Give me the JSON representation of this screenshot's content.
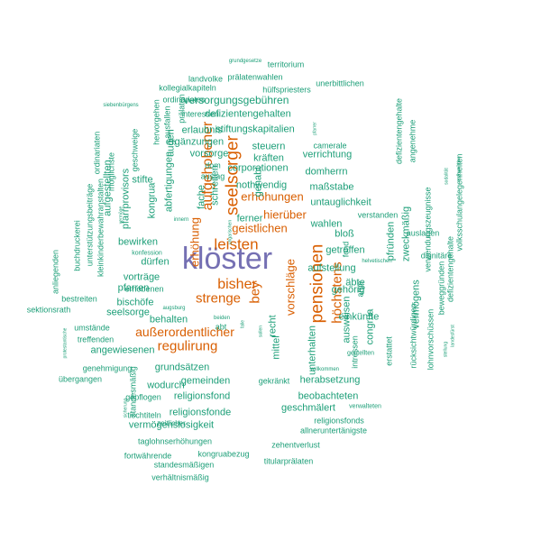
{
  "colors": {
    "level1": "#1b9e77",
    "level2": "#d95f02",
    "level3": "#7570b3"
  },
  "words": [
    {
      "t": "klöster",
      "c": "level3",
      "v": false
    },
    {
      "t": "pensionen",
      "c": "level2",
      "v": true
    },
    {
      "t": "leisten",
      "c": "level2",
      "v": false
    },
    {
      "t": "seelsorger",
      "c": "level2",
      "v": true
    },
    {
      "t": "aufgehobener",
      "c": "level2",
      "v": true
    },
    {
      "t": "bisher",
      "c": "level2",
      "v": false
    },
    {
      "t": "bey",
      "c": "level2",
      "v": true
    },
    {
      "t": "strenge",
      "c": "level2",
      "v": false
    },
    {
      "t": "höchstens",
      "c": "level2",
      "v": true
    },
    {
      "t": "außerordentlicher",
      "c": "level2",
      "v": false
    },
    {
      "t": "regulirung",
      "c": "level2",
      "v": false
    },
    {
      "t": "vorschläge",
      "c": "level2",
      "v": true
    },
    {
      "t": "erhöhung",
      "c": "level2",
      "v": true
    },
    {
      "t": "hierüber",
      "c": "level2",
      "v": false
    },
    {
      "t": "erhöhungen",
      "c": "level2",
      "v": false
    },
    {
      "t": "geistlichen",
      "c": "level2",
      "v": false
    },
    {
      "t": "versorgungsgebühren",
      "c": "level1",
      "v": false
    },
    {
      "t": "defizientengehalten",
      "c": "level1",
      "v": false
    },
    {
      "t": "stiftungskapitalien",
      "c": "level1",
      "v": false
    },
    {
      "t": "ergänzungen",
      "c": "level1",
      "v": false
    },
    {
      "t": "erlaubnis",
      "c": "level1",
      "v": false
    },
    {
      "t": "vorsorge",
      "c": "level1",
      "v": false
    },
    {
      "t": "steuern",
      "c": "level1",
      "v": false
    },
    {
      "t": "verrichtung",
      "c": "level1",
      "v": false
    },
    {
      "t": "kräften",
      "c": "level1",
      "v": false
    },
    {
      "t": "corporationen",
      "c": "level1",
      "v": false
    },
    {
      "t": "domherrn",
      "c": "level1",
      "v": false
    },
    {
      "t": "nothwendig",
      "c": "level1",
      "v": false
    },
    {
      "t": "maßstabe",
      "c": "level1",
      "v": false
    },
    {
      "t": "untauglichkeit",
      "c": "level1",
      "v": false
    },
    {
      "t": "ferner",
      "c": "level1",
      "v": false
    },
    {
      "t": "wahlen",
      "c": "level1",
      "v": false
    },
    {
      "t": "bloß",
      "c": "level1",
      "v": false
    },
    {
      "t": "getroffen",
      "c": "level1",
      "v": false
    },
    {
      "t": "aufstellung",
      "c": "level1",
      "v": false
    },
    {
      "t": "äbte",
      "c": "level1",
      "v": false
    },
    {
      "t": "gehörig",
      "c": "level1",
      "v": false
    },
    {
      "t": "einkünfte",
      "c": "level1",
      "v": false
    },
    {
      "t": "bewirken",
      "c": "level1",
      "v": false
    },
    {
      "t": "dürfen",
      "c": "level1",
      "v": false
    },
    {
      "t": "vorträge",
      "c": "level1",
      "v": false
    },
    {
      "t": "pfarren",
      "c": "level1",
      "v": false
    },
    {
      "t": "bischöfe",
      "c": "level1",
      "v": false
    },
    {
      "t": "seelsorge",
      "c": "level1",
      "v": false
    },
    {
      "t": "behalten",
      "c": "level1",
      "v": false
    },
    {
      "t": "angewiesenen",
      "c": "level1",
      "v": false
    },
    {
      "t": "grundsätzen",
      "c": "level1",
      "v": false
    },
    {
      "t": "herabsetzung",
      "c": "level1",
      "v": false
    },
    {
      "t": "wodurch",
      "c": "level1",
      "v": false
    },
    {
      "t": "gemeinden",
      "c": "level1",
      "v": false
    },
    {
      "t": "beobachteten",
      "c": "level1",
      "v": false
    },
    {
      "t": "religionsfond",
      "c": "level1",
      "v": false
    },
    {
      "t": "geschmälert",
      "c": "level1",
      "v": false
    },
    {
      "t": "religionsfonde",
      "c": "level1",
      "v": false
    },
    {
      "t": "vermögenslosigkeit",
      "c": "level1",
      "v": false
    },
    {
      "t": "taglohnserhöhungen",
      "c": "level1",
      "v": false
    },
    {
      "t": "kongruabezug",
      "c": "level1",
      "v": false
    },
    {
      "t": "zehentverlust",
      "c": "level1",
      "v": false
    },
    {
      "t": "fortwährende",
      "c": "level1",
      "v": false
    },
    {
      "t": "titularprälaten",
      "c": "level1",
      "v": false
    },
    {
      "t": "standesmäßigen",
      "c": "level1",
      "v": false
    },
    {
      "t": "verhältnismäßig",
      "c": "level1",
      "v": false
    },
    {
      "t": "allneruntertänigste",
      "c": "level1",
      "v": false
    },
    {
      "t": "religionsfonds",
      "c": "level1",
      "v": false
    },
    {
      "t": "stifte",
      "c": "level1",
      "v": false
    },
    {
      "t": "gehabt",
      "c": "level1",
      "v": true
    },
    {
      "t": "schreiten",
      "c": "level1",
      "v": true
    },
    {
      "t": "fache",
      "c": "level1",
      "v": true
    },
    {
      "t": "kongrua",
      "c": "level1",
      "v": true
    },
    {
      "t": "aufgestellten",
      "c": "level1",
      "v": true
    },
    {
      "t": "pfarrprovisors",
      "c": "level1",
      "v": true
    },
    {
      "t": "abfertigungen",
      "c": "level1",
      "v": true
    },
    {
      "t": "zweckmäßig",
      "c": "level1",
      "v": true
    },
    {
      "t": "pfründen",
      "c": "level1",
      "v": true
    },
    {
      "t": "vermögens",
      "c": "level1",
      "v": true
    },
    {
      "t": "congrua",
      "c": "level1",
      "v": true
    },
    {
      "t": "ausweisen",
      "c": "level1",
      "v": true
    },
    {
      "t": "unterhalten",
      "c": "level1",
      "v": true
    },
    {
      "t": "mittel",
      "c": "level1",
      "v": true
    },
    {
      "t": "recht",
      "c": "level1",
      "v": true
    },
    {
      "t": "augen",
      "c": "level1",
      "v": true
    },
    {
      "t": "territorium",
      "c": "level1",
      "v": false
    },
    {
      "t": "prälatenwahlen",
      "c": "level1",
      "v": false
    },
    {
      "t": "landvolke",
      "c": "level1",
      "v": false
    },
    {
      "t": "hülfspriesters",
      "c": "level1",
      "v": false
    },
    {
      "t": "kollegialkapiteln",
      "c": "level1",
      "v": false
    },
    {
      "t": "ordinariates",
      "c": "level1",
      "v": false
    },
    {
      "t": "unerbittlichen",
      "c": "level1",
      "v": false
    },
    {
      "t": "interessen",
      "c": "level1",
      "v": false
    },
    {
      "t": "camerale",
      "c": "level1",
      "v": false
    },
    {
      "t": "dom",
      "c": "level1",
      "v": false
    },
    {
      "t": "auslag",
      "c": "level1",
      "v": false
    },
    {
      "t": "verstanden",
      "c": "level1",
      "v": false
    },
    {
      "t": "auslagen",
      "c": "level1",
      "v": false
    },
    {
      "t": "dignitäre",
      "c": "level1",
      "v": false
    },
    {
      "t": "konfession",
      "c": "level1",
      "v": false
    },
    {
      "t": "erhobenen",
      "c": "level1",
      "v": false
    },
    {
      "t": "bestreiten",
      "c": "level1",
      "v": false
    },
    {
      "t": "sektionsrath",
      "c": "level1",
      "v": false
    },
    {
      "t": "umstände",
      "c": "level1",
      "v": false
    },
    {
      "t": "treffenden",
      "c": "level1",
      "v": false
    },
    {
      "t": "abt",
      "c": "level1",
      "v": false
    },
    {
      "t": "genehmigung",
      "c": "level1",
      "v": false
    },
    {
      "t": "übergangen",
      "c": "level1",
      "v": false
    },
    {
      "t": "gekränkt",
      "c": "level1",
      "v": false
    },
    {
      "t": "gepflogen",
      "c": "level1",
      "v": false
    },
    {
      "t": "tischtiteln",
      "c": "level1",
      "v": false
    },
    {
      "t": "zeitlicher",
      "c": "level1",
      "v": false
    },
    {
      "t": "verwalteten",
      "c": "level1",
      "v": false
    },
    {
      "t": "vollkommen",
      "c": "level1",
      "v": false
    },
    {
      "t": "gestellten",
      "c": "level1",
      "v": false
    },
    {
      "t": "lohnvorschüssen",
      "c": "level1",
      "v": true
    },
    {
      "t": "rücksichtwürdigen",
      "c": "level1",
      "v": true
    },
    {
      "t": "erstattet",
      "c": "level1",
      "v": true
    },
    {
      "t": "intressen",
      "c": "level1",
      "v": true
    },
    {
      "t": "arge",
      "c": "level1",
      "v": true
    },
    {
      "t": "fond",
      "c": "level1",
      "v": true
    },
    {
      "t": "beweggründen",
      "c": "level1",
      "v": true
    },
    {
      "t": "defizientengehalte",
      "c": "level1",
      "v": true
    },
    {
      "t": "volksschulangelegenheiten",
      "c": "level1",
      "v": true
    },
    {
      "t": "verwendungszeugnisse",
      "c": "level1",
      "v": true
    },
    {
      "t": "angenehme",
      "c": "level1",
      "v": true
    },
    {
      "t": "defizientengehalte",
      "c": "level1",
      "v": true
    },
    {
      "t": "buchdruckerei",
      "c": "level1",
      "v": true
    },
    {
      "t": "unterstützungsbeiträge",
      "c": "level1",
      "v": true
    },
    {
      "t": "kleinkinderbewahranstalten",
      "c": "level1",
      "v": true
    },
    {
      "t": "ordinariaten",
      "c": "level1",
      "v": true
    },
    {
      "t": "möglichste",
      "c": "level1",
      "v": true
    },
    {
      "t": "geschweige",
      "c": "level1",
      "v": true
    },
    {
      "t": "hervorgehen",
      "c": "level1",
      "v": true
    },
    {
      "t": "ausfallen",
      "c": "level1",
      "v": true
    },
    {
      "t": "prälaten",
      "c": "level1",
      "v": true
    },
    {
      "t": "anliegenden",
      "c": "level1",
      "v": true
    },
    {
      "t": "standesmäßig",
      "c": "level1",
      "v": true
    },
    {
      "t": "grundgesetze",
      "c": "level1",
      "v": false
    },
    {
      "t": "siebenbürgens",
      "c": "level1",
      "v": false
    },
    {
      "t": "helvetischen",
      "c": "level1",
      "v": false
    },
    {
      "t": "augsburg",
      "c": "level1",
      "v": false
    },
    {
      "t": "innern",
      "c": "level1",
      "v": false
    },
    {
      "t": "beiden",
      "c": "level1",
      "v": false
    },
    {
      "t": "vermöge",
      "c": "level1",
      "v": true
    },
    {
      "t": "protestantische",
      "c": "level1",
      "v": true
    },
    {
      "t": "sicherung",
      "c": "level1",
      "v": true
    },
    {
      "t": "stellung",
      "c": "level1",
      "v": true
    },
    {
      "t": "landesfürst",
      "c": "level1",
      "v": true
    },
    {
      "t": "zuzuwenden",
      "c": "level1",
      "v": true
    },
    {
      "t": "ungarischen",
      "c": "level1",
      "v": true
    },
    {
      "t": "sodalität",
      "c": "level1",
      "v": true
    },
    {
      "t": "falle",
      "c": "level1",
      "v": true
    },
    {
      "t": "sollen",
      "c": "level1",
      "v": true
    },
    {
      "t": "pfarrer",
      "c": "level1",
      "v": true
    }
  ]
}
